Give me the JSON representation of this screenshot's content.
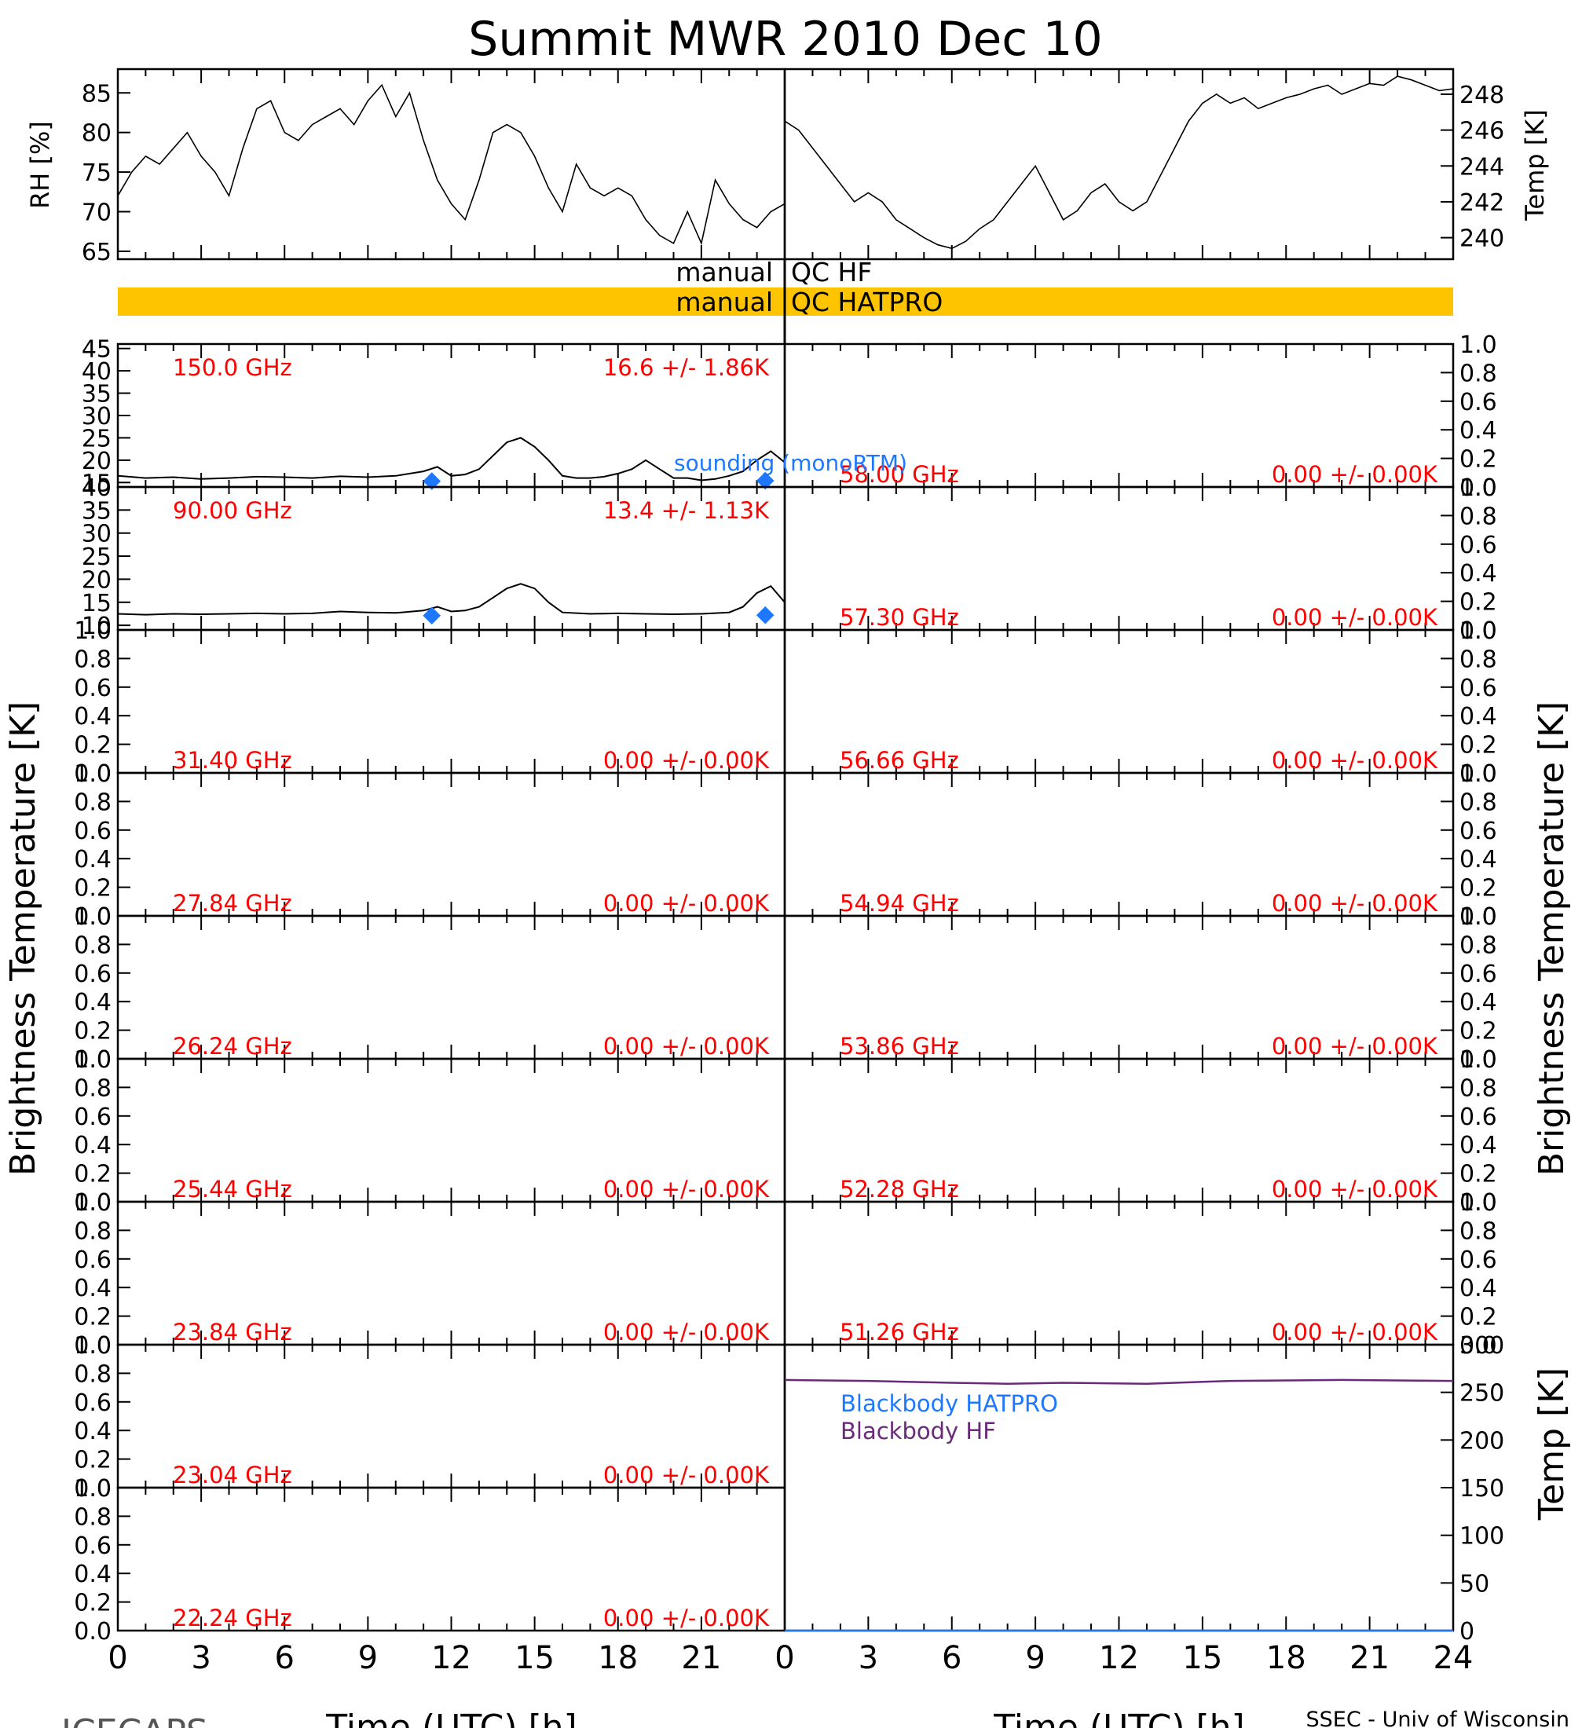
{
  "title": "Summit MWR 2010 Dec 10",
  "footer_left": "ICECAPS",
  "footer_right": "SSEC - Univ of Wisconsin",
  "colors": {
    "axis": "#000000",
    "label_red": "#ff0000",
    "sounding_blue": "#1e78ff",
    "qc_bar": "#ffc400",
    "blackbody_hatpro": "#1e78ff",
    "blackbody_hf": "#6a2a7a"
  },
  "x_axis": {
    "label": "Time (UTC) [h]",
    "range": [
      0,
      24
    ],
    "left_ticks": [
      "0",
      "3",
      "6",
      "9",
      "12",
      "15",
      "18",
      "21"
    ],
    "right_ticks": [
      "0",
      "3",
      "6",
      "9",
      "12",
      "15",
      "18",
      "21",
      "24"
    ]
  },
  "y_axis_titles": {
    "rh": "RH [%]",
    "temp_top": "Temp [K]",
    "bt_left": "Brightness Temperature [K]",
    "bt_right": "Brightness Temperature [K]",
    "temp_bottom": "Temp [K]"
  },
  "qc": {
    "hf_left": "manual",
    "hf_right": "QC HF",
    "hatpro_left": "manual",
    "hatpro_right": "QC HATPRO"
  },
  "legends": {
    "sounding": "sounding (monoRTM)",
    "blackbody_hatpro": "Blackbody HATPRO",
    "blackbody_hf": "Blackbody HF"
  },
  "chart_data": [
    {
      "type": "line",
      "panel": "surface-rh",
      "ylabel": "RH [%]",
      "xlim": [
        0,
        24
      ],
      "ylim": [
        64,
        88
      ],
      "yticks": [
        65,
        70,
        75,
        80,
        85
      ],
      "x": [
        0,
        0.5,
        1,
        1.5,
        2,
        2.5,
        3,
        3.5,
        4,
        4.5,
        5,
        5.5,
        6,
        6.5,
        7,
        7.5,
        8,
        8.5,
        9,
        9.5,
        10,
        10.5,
        11,
        11.5,
        12,
        12.5,
        13,
        13.5,
        14,
        14.5,
        15,
        15.5,
        16,
        16.5,
        17,
        17.5,
        18,
        18.5,
        19,
        19.5,
        20,
        20.5,
        21,
        21.5,
        22,
        22.5,
        23,
        23.5,
        24
      ],
      "values": [
        72,
        75,
        77,
        76,
        78,
        80,
        77,
        75,
        72,
        78,
        83,
        84,
        80,
        79,
        81,
        82,
        83,
        81,
        84,
        86,
        82,
        85,
        79,
        74,
        71,
        69,
        74,
        80,
        81,
        80,
        77,
        73,
        70,
        76,
        73,
        72,
        73,
        72,
        69,
        67,
        66,
        70,
        66,
        74,
        71,
        69,
        68,
        70,
        71
      ]
    },
    {
      "type": "line",
      "panel": "surface-temp",
      "ylabel": "Temp [K]",
      "xlim": [
        0,
        24
      ],
      "ylim": [
        238.8,
        249.4
      ],
      "yticks": [
        240,
        242,
        244,
        246,
        248
      ],
      "x": [
        0,
        0.5,
        1,
        1.5,
        2,
        2.5,
        3,
        3.5,
        4,
        4.5,
        5,
        5.5,
        6,
        6.5,
        7,
        7.5,
        8,
        8.5,
        9,
        9.5,
        10,
        10.5,
        11,
        11.5,
        12,
        12.5,
        13,
        13.5,
        14,
        14.5,
        15,
        15.5,
        16,
        16.5,
        17,
        17.5,
        18,
        18.5,
        19,
        19.5,
        20,
        20.5,
        21,
        21.5,
        22,
        22.5,
        23,
        23.5,
        24
      ],
      "values": [
        246.5,
        246,
        245,
        244,
        243,
        242,
        242.5,
        242,
        241,
        240.5,
        240,
        239.6,
        239.4,
        239.8,
        240.5,
        241,
        242,
        243,
        244,
        242.5,
        241,
        241.5,
        242.5,
        243,
        242,
        241.5,
        242,
        243.5,
        245,
        246.5,
        247.5,
        248,
        247.5,
        247.8,
        247.2,
        247.5,
        247.8,
        248,
        248.3,
        248.5,
        248,
        248.3,
        248.6,
        248.5,
        249,
        248.8,
        248.5,
        248.2,
        248.3
      ]
    },
    {
      "type": "line",
      "panel": "bt-150",
      "frequency_label": "150.0 GHz",
      "stats_label": "16.6 +/- 1.86K",
      "ylim": [
        14,
        46
      ],
      "yticks": [
        15,
        20,
        25,
        30,
        35,
        40,
        45
      ],
      "x": [
        0,
        1,
        2,
        3,
        4,
        5,
        6,
        7,
        8,
        9,
        10,
        11,
        11.5,
        12,
        12.5,
        13,
        13.5,
        14,
        14.5,
        15,
        15.5,
        16,
        16.5,
        17,
        17.5,
        18,
        18.5,
        19,
        19.5,
        20,
        20.5,
        21,
        21.5,
        22,
        22.5,
        23,
        23.5,
        24
      ],
      "values": [
        16.5,
        16,
        16.2,
        15.8,
        16,
        16.3,
        16.2,
        16,
        16.4,
        16.2,
        16.5,
        17.5,
        18.5,
        16.5,
        16.8,
        18,
        21,
        24,
        25,
        23,
        20,
        16.5,
        16,
        16,
        16.3,
        17,
        18,
        20,
        18,
        16,
        16,
        15.5,
        15.8,
        16.5,
        17.5,
        20,
        22,
        19.5
      ],
      "sounding_x": [
        11.3,
        23.3
      ],
      "sounding_values": [
        15.3,
        15.4
      ]
    },
    {
      "type": "line",
      "panel": "bt-90",
      "frequency_label": "90.00 GHz",
      "stats_label": "13.4 +/- 1.13K",
      "ylim": [
        9,
        40
      ],
      "yticks": [
        10,
        15,
        20,
        25,
        30,
        35,
        40
      ],
      "x": [
        0,
        1,
        2,
        3,
        4,
        5,
        6,
        7,
        8,
        9,
        10,
        11,
        11.5,
        12,
        12.5,
        13,
        13.5,
        14,
        14.5,
        15,
        15.5,
        16,
        17,
        18,
        19,
        20,
        21,
        22,
        22.5,
        23,
        23.5,
        24
      ],
      "values": [
        12.5,
        12.3,
        12.5,
        12.4,
        12.5,
        12.6,
        12.5,
        12.6,
        13,
        12.8,
        12.7,
        13.2,
        14,
        13,
        13.2,
        14,
        16,
        18,
        19,
        18,
        15,
        12.8,
        12.5,
        12.6,
        12.5,
        12.4,
        12.5,
        12.8,
        14,
        17,
        18.5,
        15
      ],
      "sounding_x": [
        11.3,
        23.3
      ],
      "sounding_values": [
        12.1,
        12.2
      ]
    },
    {
      "type": "line",
      "panel": "bt-31.40",
      "frequency_label": "31.40 GHz",
      "stats_label": "0.00 +/- 0.00K",
      "ylim": [
        0,
        1
      ],
      "values": []
    },
    {
      "type": "line",
      "panel": "bt-27.84",
      "frequency_label": "27.84 GHz",
      "stats_label": "0.00 +/- 0.00K",
      "ylim": [
        0,
        1
      ],
      "values": []
    },
    {
      "type": "line",
      "panel": "bt-26.24",
      "frequency_label": "26.24 GHz",
      "stats_label": "0.00 +/- 0.00K",
      "ylim": [
        0,
        1
      ],
      "values": []
    },
    {
      "type": "line",
      "panel": "bt-25.44",
      "frequency_label": "25.44 GHz",
      "stats_label": "0.00 +/- 0.00K",
      "ylim": [
        0,
        1
      ],
      "values": []
    },
    {
      "type": "line",
      "panel": "bt-23.84",
      "frequency_label": "23.84 GHz",
      "stats_label": "0.00 +/- 0.00K",
      "ylim": [
        0,
        1
      ],
      "values": []
    },
    {
      "type": "line",
      "panel": "bt-23.04",
      "frequency_label": "23.04 GHz",
      "stats_label": "0.00 +/- 0.00K",
      "ylim": [
        0,
        1
      ],
      "values": []
    },
    {
      "type": "line",
      "panel": "bt-22.24",
      "frequency_label": "22.24 GHz",
      "stats_label": "0.00 +/- 0.00K",
      "ylim": [
        0,
        1
      ],
      "values": []
    },
    {
      "type": "line",
      "panel": "bt-58.00",
      "frequency_label": "58.00 GHz",
      "stats_label": "0.00 +/- 0.00K",
      "ylim": [
        0,
        1
      ],
      "values": []
    },
    {
      "type": "line",
      "panel": "bt-57.30",
      "frequency_label": "57.30 GHz",
      "stats_label": "0.00 +/- 0.00K",
      "ylim": [
        0,
        1
      ],
      "values": []
    },
    {
      "type": "line",
      "panel": "bt-56.66",
      "frequency_label": "56.66 GHz",
      "stats_label": "0.00 +/- 0.00K",
      "ylim": [
        0,
        1
      ],
      "values": []
    },
    {
      "type": "line",
      "panel": "bt-54.94",
      "frequency_label": "54.94 GHz",
      "stats_label": "0.00 +/- 0.00K",
      "ylim": [
        0,
        1
      ],
      "values": []
    },
    {
      "type": "line",
      "panel": "bt-53.86",
      "frequency_label": "53.86 GHz",
      "stats_label": "0.00 +/- 0.00K",
      "ylim": [
        0,
        1
      ],
      "values": []
    },
    {
      "type": "line",
      "panel": "bt-52.28",
      "frequency_label": "52.28 GHz",
      "stats_label": "0.00 +/- 0.00K",
      "ylim": [
        0,
        1
      ],
      "values": []
    },
    {
      "type": "line",
      "panel": "bt-51.26",
      "frequency_label": "51.26 GHz",
      "stats_label": "0.00 +/- 0.00K",
      "ylim": [
        0,
        1
      ],
      "values": []
    },
    {
      "type": "line",
      "panel": "blackbody",
      "ylabel": "Temp [K]",
      "xlim": [
        0,
        24
      ],
      "ylim": [
        0,
        300
      ],
      "yticks": [
        0,
        50,
        100,
        150,
        200,
        250,
        300
      ],
      "series": [
        {
          "name": "Blackbody HF",
          "x": [
            0,
            3,
            6,
            8,
            10,
            13,
            16,
            20,
            24
          ],
          "values": [
            263,
            262,
            260,
            259,
            260,
            259,
            262,
            263,
            262
          ]
        },
        {
          "name": "Blackbody HATPRO",
          "x": [
            0,
            24
          ],
          "values": [
            0,
            0
          ]
        }
      ]
    }
  ]
}
